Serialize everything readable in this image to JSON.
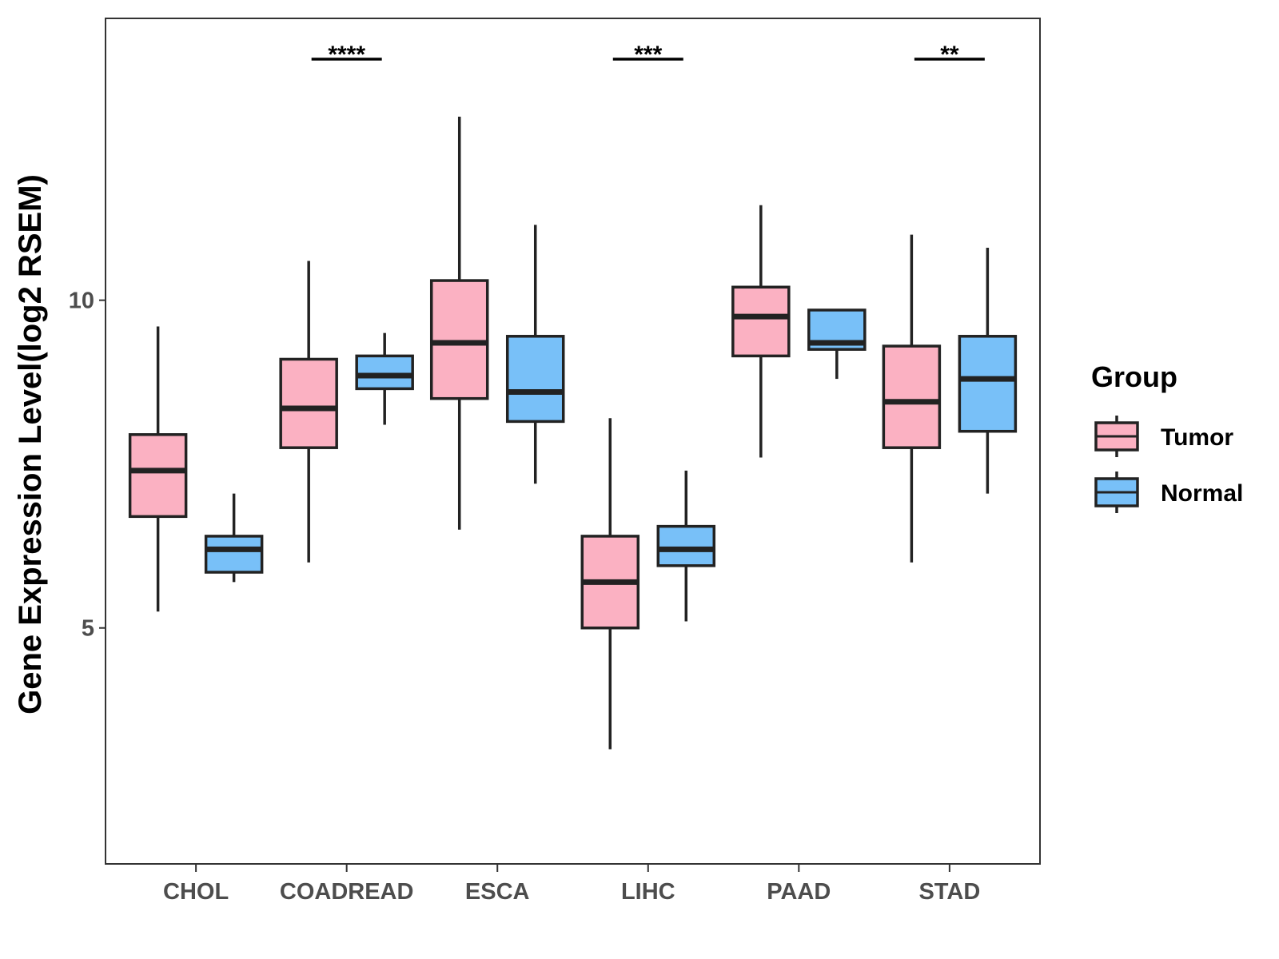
{
  "chart_data": {
    "type": "box",
    "title": "",
    "xlabel": "",
    "ylabel": "Gene Expression Level(log2 RSEM)",
    "ylim": [
      1.4,
      14.3
    ],
    "yticks": [
      5,
      10
    ],
    "ytick_labels": [
      "5",
      "10"
    ],
    "grid": false,
    "legend_position": "right",
    "legend_title": "Group",
    "categories": [
      "CHOL",
      "COADREAD",
      "ESCA",
      "LIHC",
      "PAAD",
      "STAD"
    ],
    "series": [
      {
        "name": "Tumor",
        "color": "#FBB1C2",
        "boxes": [
          {
            "whisker_low": 5.25,
            "q1": 6.7,
            "median": 7.4,
            "q3": 7.95,
            "whisker_high": 9.6
          },
          {
            "whisker_low": 6.0,
            "q1": 7.75,
            "median": 8.35,
            "q3": 9.1,
            "whisker_high": 10.6
          },
          {
            "whisker_low": 6.5,
            "q1": 8.5,
            "median": 9.35,
            "q3": 10.3,
            "whisker_high": 12.8
          },
          {
            "whisker_low": 3.15,
            "q1": 5.0,
            "median": 5.7,
            "q3": 6.4,
            "whisker_high": 8.2
          },
          {
            "whisker_low": 7.6,
            "q1": 9.15,
            "median": 9.75,
            "q3": 10.2,
            "whisker_high": 11.45
          },
          {
            "whisker_low": 6.0,
            "q1": 7.75,
            "median": 8.45,
            "q3": 9.3,
            "whisker_high": 11.0
          }
        ]
      },
      {
        "name": "Normal",
        "color": "#78C0F8",
        "boxes": [
          {
            "whisker_low": 5.7,
            "q1": 5.85,
            "median": 6.2,
            "q3": 6.4,
            "whisker_high": 7.05
          },
          {
            "whisker_low": 8.1,
            "q1": 8.65,
            "median": 8.85,
            "q3": 9.15,
            "whisker_high": 9.5
          },
          {
            "whisker_low": 7.2,
            "q1": 8.15,
            "median": 8.6,
            "q3": 9.45,
            "whisker_high": 11.15
          },
          {
            "whisker_low": 5.1,
            "q1": 5.95,
            "median": 6.2,
            "q3": 6.55,
            "whisker_high": 7.4
          },
          {
            "whisker_low": 8.8,
            "q1": 9.25,
            "median": 9.35,
            "q3": 9.85,
            "whisker_high": 9.85
          },
          {
            "whisker_low": 7.05,
            "q1": 8.0,
            "median": 8.8,
            "q3": 9.45,
            "whisker_high": 10.8
          }
        ]
      }
    ],
    "significance": [
      {
        "category": "CHOL",
        "label": ""
      },
      {
        "category": "COADREAD",
        "label": "****"
      },
      {
        "category": "ESCA",
        "label": ""
      },
      {
        "category": "LIHC",
        "label": "***"
      },
      {
        "category": "PAAD",
        "label": ""
      },
      {
        "category": "STAD",
        "label": "**"
      }
    ]
  }
}
